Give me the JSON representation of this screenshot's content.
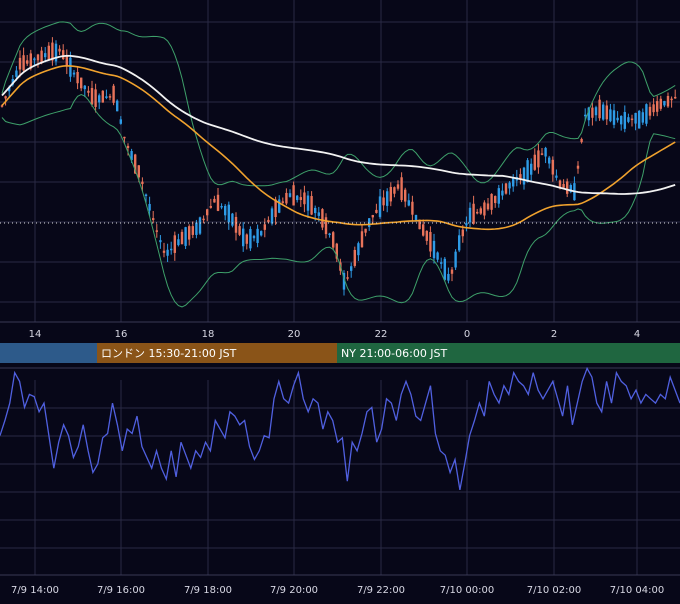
{
  "colors": {
    "background": "#070718",
    "grid": "#2a2a44",
    "candle_up": "#2e9be6",
    "candle_down": "#e8735a",
    "bollinger": "#3ea06a",
    "ma_short": "#f0a22e",
    "ma_long": "#f2f2f2",
    "oscillator": "#5060e0",
    "session_tokyo": "#2d5a8a",
    "session_london": "#8a5418",
    "session_ny": "#1f6640",
    "entry_line": "#dcdcdc"
  },
  "sessions": [
    {
      "label": "",
      "color_key": "session_tokyo"
    },
    {
      "label": "ロンドン 15:30-21:00 JST",
      "color_key": "session_london"
    },
    {
      "label": "NY 21:00-06:00 JST",
      "color_key": "session_ny"
    }
  ],
  "chart_data": [
    {
      "type": "candlestick",
      "title": "",
      "x_ticks": [
        "14",
        "16",
        "18",
        "20",
        "22",
        "0",
        "2",
        "4"
      ],
      "indicators": [
        "bollinger_bands",
        "ma_short",
        "ma_long"
      ],
      "grid": true
    },
    {
      "type": "line",
      "title": "",
      "x_ticks": [
        "7/9 14:00",
        "7/9 16:00",
        "7/9 18:00",
        "7/9 20:00",
        "7/9 22:00",
        "7/10 00:00",
        "7/10 02:00",
        "7/10 04:00"
      ],
      "series": [
        {
          "values": [
            55,
            62,
            70,
            84,
            80,
            68,
            74,
            73,
            66,
            70,
            55,
            40,
            52,
            60,
            55,
            45,
            50,
            60,
            48,
            38,
            42,
            54,
            56,
            70,
            60,
            48,
            58,
            56,
            64,
            50,
            45,
            40,
            48,
            40,
            35,
            48,
            36,
            52,
            46,
            40,
            48,
            45,
            52,
            48,
            62,
            58,
            54,
            66,
            64,
            60,
            62,
            50,
            44,
            48,
            55,
            54,
            72,
            80,
            72,
            70,
            78,
            84,
            72,
            66,
            72,
            70,
            58,
            66,
            62,
            52,
            54,
            34,
            52,
            48,
            56,
            66,
            68,
            52,
            58,
            72,
            70,
            62,
            74,
            80,
            74,
            64,
            62,
            70,
            78,
            56,
            48,
            46,
            38,
            44,
            30,
            42,
            55,
            62,
            70,
            64,
            80,
            74,
            70,
            78,
            74,
            84,
            80,
            78,
            74,
            84,
            76,
            72,
            76,
            80,
            72,
            64,
            78,
            60,
            70,
            80,
            86,
            82,
            70,
            66,
            80,
            70,
            84,
            80,
            78,
            72,
            76,
            70,
            74,
            72,
            70,
            74,
            72,
            82,
            76,
            70
          ]
        }
      ],
      "grid": true
    }
  ]
}
